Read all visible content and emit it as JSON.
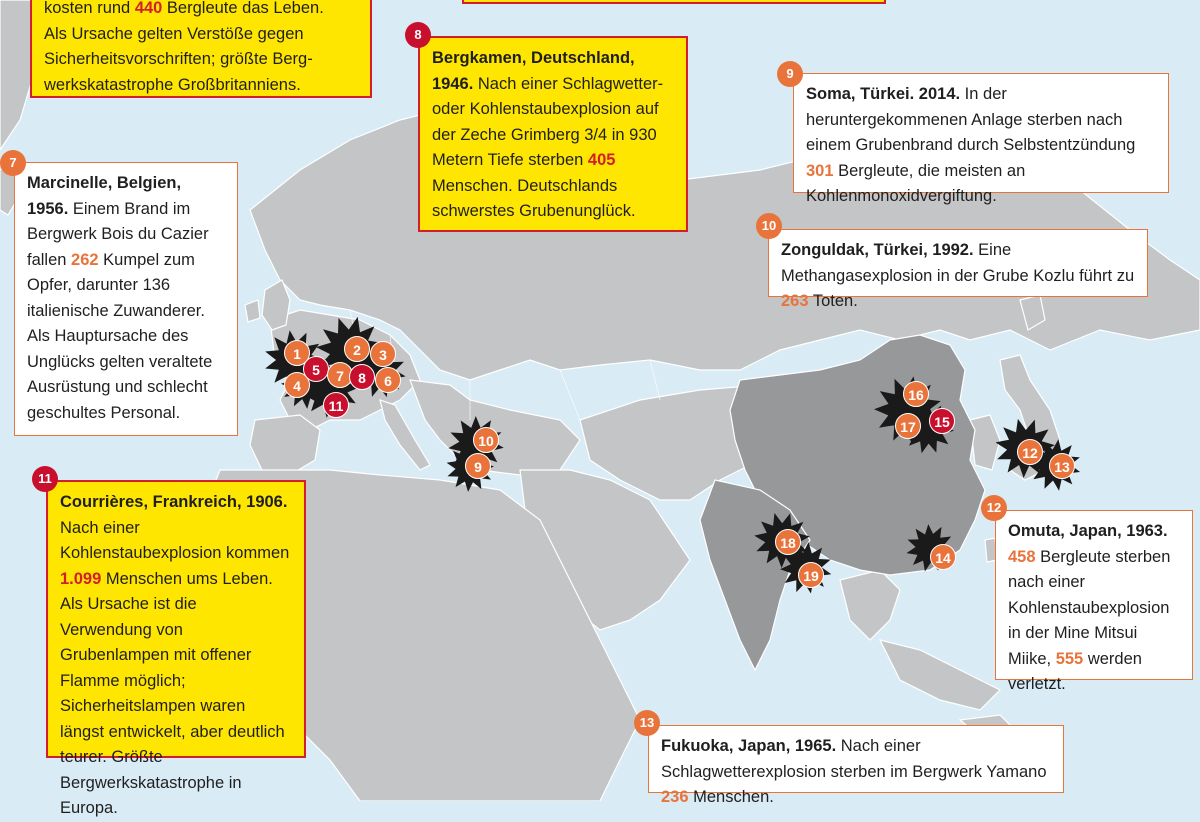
{
  "colors": {
    "ocean": "#d9ebf5",
    "land_other": "#c4c5c7",
    "land_highlight": "#97989a",
    "box_yellow": "#ffe600",
    "red": "#d21e2d",
    "orange": "#e8743b",
    "explosion": "#1a1a1a"
  },
  "box_top_left": {
    "lines": [
      "kosten rund 440 Bergleute das Leben.",
      "Als Ursache gelten Verstöße gegen",
      "Sicherheitsvorschriften; größte Berg-",
      "werkskatastrophe Großbritanniens."
    ]
  },
  "disasters": [
    {
      "id": "7",
      "title": "Marcinelle, Belgien,",
      "year": "1956.",
      "text_before": "Einem Brand im Bergwerk Bois du Cazier fallen",
      "number": "262",
      "text_after": "Kumpel zum Opfer, darunter 136 italienische Zuwanderer. Als Hauptursache des Unglücks gelten veraltete Ausrüstung und schlecht geschultes Personal."
    },
    {
      "id": "8",
      "title": "Bergkamen, Deutschland,",
      "year": "1946.",
      "text_before": "Nach einer Schlagwetter- oder Kohlenstaubexplosion auf der Zeche Grimberg 3/4 in 930 Metern Tiefe sterben",
      "number": "405",
      "text_after": "Menschen. Deutschlands schwerstes Grubenunglück."
    },
    {
      "id": "9",
      "title": "Soma, Türkei. 2014.",
      "text_before": "In der heruntergekommenen Anlage sterben nach einem Grubenbrand durch Selbstentzündung",
      "number": "301",
      "text_after": "Bergleute, die meisten an Kohlenmonoxidvergiftung."
    },
    {
      "id": "10",
      "title": "Zonguldak, Türkei, 1992.",
      "text_before": "Eine Methangasexplosion in der Grube Kozlu führt zu",
      "number": "263",
      "text_after": "Toten."
    },
    {
      "id": "11",
      "title": "Courrières, Frankreich, 1906.",
      "text_before": "Nach einer Kohlenstaubexplosion kommen",
      "number": "1.099",
      "text_after": "Menschen ums Leben. Als Ursache ist die Verwendung von Grubenlampen mit offener Flamme möglich; Sicherheitslampen waren längst entwickelt, aber deutlich teurer. Größte Bergwerkskatastrophe in Europa."
    },
    {
      "id": "12",
      "title": "Omuta, Japan, 1963.",
      "number": "458",
      "text_before": "Bergleute sterben nach einer Kohlenstaubexplosion in der Mine Mitsui Miike,",
      "number2": "555",
      "text_after": "werden verletzt."
    },
    {
      "id": "13",
      "title": "Fukuoka, Japan, 1965.",
      "text_before": "Nach einer Schlagwetterexplosion sterben im Bergwerk Yamano",
      "number": "236",
      "text_after": "Menschen."
    }
  ],
  "markers": [
    {
      "label": "1",
      "kind": "orange"
    },
    {
      "label": "2",
      "kind": "orange"
    },
    {
      "label": "3",
      "kind": "orange"
    },
    {
      "label": "4",
      "kind": "orange"
    },
    {
      "label": "5",
      "kind": "red"
    },
    {
      "label": "6",
      "kind": "orange"
    },
    {
      "label": "7",
      "kind": "orange"
    },
    {
      "label": "8",
      "kind": "red"
    },
    {
      "label": "9",
      "kind": "orange"
    },
    {
      "label": "10",
      "kind": "orange"
    },
    {
      "label": "11",
      "kind": "red"
    },
    {
      "label": "12",
      "kind": "orange"
    },
    {
      "label": "13",
      "kind": "orange"
    },
    {
      "label": "14",
      "kind": "orange"
    },
    {
      "label": "15",
      "kind": "red"
    },
    {
      "label": "16",
      "kind": "orange"
    },
    {
      "label": "17",
      "kind": "orange"
    },
    {
      "label": "18",
      "kind": "orange"
    },
    {
      "label": "19",
      "kind": "orange"
    }
  ]
}
